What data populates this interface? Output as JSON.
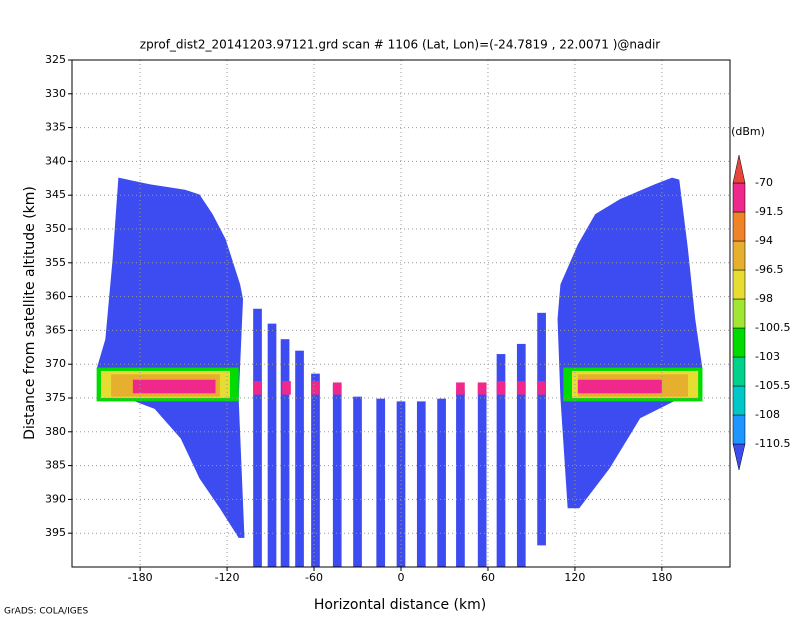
{
  "chart_data": {
    "type": "radar-profile",
    "title": "zprof_dist2_20141203.97121.grd  scan # 1106  (Lat, Lon)=(-24.7819 , 22.0071 )@nadir",
    "xlabel": "Horizontal distance (km)",
    "ylabel": "Distance from satellite altitude (km)",
    "footer": "GrADS: COLA/IGES",
    "xlim": [
      -227,
      227
    ],
    "ylim": [
      325,
      400
    ],
    "xticks": [
      -180,
      -120,
      -60,
      0,
      60,
      120,
      180
    ],
    "yticks": [
      325,
      330,
      335,
      340,
      345,
      350,
      355,
      360,
      365,
      370,
      375,
      380,
      385,
      390,
      395
    ],
    "grid": true,
    "colorbar": {
      "unit": "(dBm)",
      "levels": [
        -110.5,
        -108,
        -105.5,
        -103,
        -100.5,
        -98,
        -96.5,
        -94,
        -91.5,
        -70
      ],
      "colors": [
        "#3c4cf0",
        "#1e96ff",
        "#00c8c8",
        "#00d28c",
        "#00dc00",
        "#a0e632",
        "#e6dc32",
        "#e6af2d",
        "#f08228",
        "#f0288c",
        "#e6463c"
      ]
    },
    "swaths": [
      {
        "x": [
          -195,
          -173,
          -149,
          -139,
          -130,
          -121,
          -111,
          -109,
          -112,
          -108,
          -112,
          -125,
          -139,
          -152,
          -170,
          -197,
          -208,
          -210,
          -204,
          -199
        ],
        "y": [
          342.4,
          343.4,
          344.2,
          344.9,
          347.8,
          351.5,
          358.2,
          360.4,
          375.1,
          395.7,
          395.7,
          391.3,
          386.9,
          381,
          376.6,
          374.4,
          372.2,
          370.7,
          366.3,
          354.5
        ]
      },
      {
        "x": [
          187,
          175,
          151,
          134,
          122,
          110,
          108,
          110,
          115,
          123,
          144,
          165,
          192,
          206,
          208,
          203,
          198,
          192
        ],
        "y": [
          342.4,
          343.4,
          345.6,
          347.8,
          352.3,
          358.2,
          363.3,
          375,
          391.3,
          391.3,
          385.4,
          378,
          375.1,
          372.9,
          370.7,
          363.3,
          353,
          342.7
        ]
      }
    ],
    "strip_width": 6,
    "strips": [
      {
        "x": -99,
        "top": 361.8,
        "bottom": 400
      },
      {
        "x": -89,
        "top": 364,
        "bottom": 400
      },
      {
        "x": -80,
        "top": 366.3,
        "bottom": 400
      },
      {
        "x": -70,
        "top": 368,
        "bottom": 400
      },
      {
        "x": -59,
        "top": 371.4,
        "bottom": 400
      },
      {
        "x": -44,
        "top": 372.9,
        "bottom": 400
      },
      {
        "x": -30,
        "top": 374.8,
        "bottom": 400
      },
      {
        "x": -14,
        "top": 375.1,
        "bottom": 400
      },
      {
        "x": 0,
        "top": 375.5,
        "bottom": 400
      },
      {
        "x": 14,
        "top": 375.5,
        "bottom": 400
      },
      {
        "x": 28,
        "top": 375.1,
        "bottom": 400
      },
      {
        "x": 41,
        "top": 373.9,
        "bottom": 400
      },
      {
        "x": 56,
        "top": 372.9,
        "bottom": 400
      },
      {
        "x": 69,
        "top": 368.5,
        "bottom": 400
      },
      {
        "x": 83,
        "top": 367,
        "bottom": 400
      },
      {
        "x": 97,
        "top": 362.4,
        "bottom": 396.8
      }
    ],
    "echoes": [
      {
        "x0": -210,
        "x1": -112,
        "y0": 370.5,
        "y1": 375.5,
        "value": -102
      },
      {
        "x0": -207,
        "x1": -118,
        "y0": 371,
        "y1": 375,
        "value": -97
      },
      {
        "x0": -200,
        "x1": -125,
        "y0": 371.5,
        "y1": 374.8,
        "value": -95
      },
      {
        "x0": -185,
        "x1": -128,
        "y0": 372.3,
        "y1": 374.3,
        "value": -90
      },
      {
        "x0": 112,
        "x1": 208,
        "y0": 370.5,
        "y1": 375.5,
        "value": -102
      },
      {
        "x0": 118,
        "x1": 205,
        "y0": 371,
        "y1": 375,
        "value": -97
      },
      {
        "x0": 122,
        "x1": 198,
        "y0": 371.5,
        "y1": 374.8,
        "value": -95
      },
      {
        "x0": 122,
        "x1": 180,
        "y0": 372.3,
        "y1": 374.3,
        "value": -90
      },
      {
        "x0": -102,
        "x1": -96,
        "y0": 372.5,
        "y1": 374.5,
        "value": -90
      },
      {
        "x0": -82,
        "x1": -76,
        "y0": 372.5,
        "y1": 374.5,
        "value": -90
      },
      {
        "x0": -62,
        "x1": -56,
        "y0": 372.5,
        "y1": 374.5,
        "value": -90
      },
      {
        "x0": -47,
        "x1": -41,
        "y0": 372.7,
        "y1": 374.5,
        "value": -90
      },
      {
        "x0": 38,
        "x1": 44,
        "y0": 372.7,
        "y1": 374.5,
        "value": -90
      },
      {
        "x0": 53,
        "x1": 59,
        "y0": 372.7,
        "y1": 374.5,
        "value": -90
      },
      {
        "x0": 66,
        "x1": 72,
        "y0": 372.5,
        "y1": 374.5,
        "value": -90
      },
      {
        "x0": 80,
        "x1": 86,
        "y0": 372.5,
        "y1": 374.5,
        "value": -90
      },
      {
        "x0": 94,
        "x1": 100,
        "y0": 372.5,
        "y1": 374.5,
        "value": -90
      }
    ]
  }
}
